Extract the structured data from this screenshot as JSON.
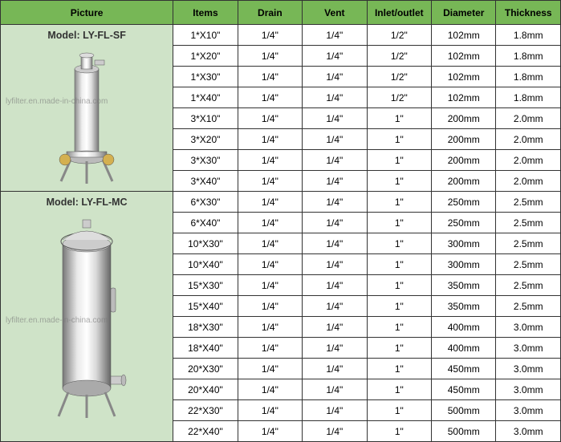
{
  "headers": {
    "picture": "Picture",
    "items": "Items",
    "drain": "Drain",
    "vent": "Vent",
    "inlet": "Inlet/outlet",
    "diameter": "Diameter",
    "thickness": "Thickness"
  },
  "model1": {
    "label": "Model: LY-FL-SF",
    "watermark": "lyfilter.en.made-in-china.com",
    "rows": [
      {
        "items": "1*X10\"",
        "drain": "1/4\"",
        "vent": "1/4\"",
        "inlet": "1/2\"",
        "diameter": "102mm",
        "thickness": "1.8mm"
      },
      {
        "items": "1*X20\"",
        "drain": "1/4\"",
        "vent": "1/4\"",
        "inlet": "1/2\"",
        "diameter": "102mm",
        "thickness": "1.8mm"
      },
      {
        "items": "1*X30\"",
        "drain": "1/4\"",
        "vent": "1/4\"",
        "inlet": "1/2\"",
        "diameter": "102mm",
        "thickness": "1.8mm"
      },
      {
        "items": "1*X40\"",
        "drain": "1/4\"",
        "vent": "1/4\"",
        "inlet": "1/2\"",
        "diameter": "102mm",
        "thickness": "1.8mm"
      },
      {
        "items": "3*X10\"",
        "drain": "1/4\"",
        "vent": "1/4\"",
        "inlet": "1\"",
        "diameter": "200mm",
        "thickness": "2.0mm"
      },
      {
        "items": "3*X20\"",
        "drain": "1/4\"",
        "vent": "1/4\"",
        "inlet": "1\"",
        "diameter": "200mm",
        "thickness": "2.0mm"
      },
      {
        "items": "3*X30\"",
        "drain": "1/4\"",
        "vent": "1/4\"",
        "inlet": "1\"",
        "diameter": "200mm",
        "thickness": "2.0mm"
      },
      {
        "items": "3*X40\"",
        "drain": "1/4\"",
        "vent": "1/4\"",
        "inlet": "1\"",
        "diameter": "200mm",
        "thickness": "2.0mm"
      }
    ]
  },
  "model2": {
    "label": "Model: LY-FL-MC",
    "watermark": "lyfilter.en.made-in-china.com",
    "rows": [
      {
        "items": "6*X30\"",
        "drain": "1/4\"",
        "vent": "1/4\"",
        "inlet": "1\"",
        "diameter": "250mm",
        "thickness": "2.5mm"
      },
      {
        "items": "6*X40\"",
        "drain": "1/4\"",
        "vent": "1/4\"",
        "inlet": "1\"",
        "diameter": "250mm",
        "thickness": "2.5mm"
      },
      {
        "items": "10*X30\"",
        "drain": "1/4\"",
        "vent": "1/4\"",
        "inlet": "1\"",
        "diameter": "300mm",
        "thickness": "2.5mm"
      },
      {
        "items": "10*X40\"",
        "drain": "1/4\"",
        "vent": "1/4\"",
        "inlet": "1\"",
        "diameter": "300mm",
        "thickness": "2.5mm"
      },
      {
        "items": "15*X30\"",
        "drain": "1/4\"",
        "vent": "1/4\"",
        "inlet": "1\"",
        "diameter": "350mm",
        "thickness": "2.5mm"
      },
      {
        "items": "15*X40\"",
        "drain": "1/4\"",
        "vent": "1/4\"",
        "inlet": "1\"",
        "diameter": "350mm",
        "thickness": "2.5mm"
      },
      {
        "items": "18*X30\"",
        "drain": "1/4\"",
        "vent": "1/4\"",
        "inlet": "1\"",
        "diameter": "400mm",
        "thickness": "3.0mm"
      },
      {
        "items": "18*X40\"",
        "drain": "1/4\"",
        "vent": "1/4\"",
        "inlet": "1\"",
        "diameter": "400mm",
        "thickness": "3.0mm"
      },
      {
        "items": "20*X30\"",
        "drain": "1/4\"",
        "vent": "1/4\"",
        "inlet": "1\"",
        "diameter": "450mm",
        "thickness": "3.0mm"
      },
      {
        "items": "20*X40\"",
        "drain": "1/4\"",
        "vent": "1/4\"",
        "inlet": "1\"",
        "diameter": "450mm",
        "thickness": "3.0mm"
      },
      {
        "items": "22*X30\"",
        "drain": "1/4\"",
        "vent": "1/4\"",
        "inlet": "1\"",
        "diameter": "500mm",
        "thickness": "3.0mm"
      },
      {
        "items": "22*X40\"",
        "drain": "1/4\"",
        "vent": "1/4\"",
        "inlet": "1\"",
        "diameter": "500mm",
        "thickness": "3.0mm"
      }
    ]
  },
  "colors": {
    "header_bg": "#77b756",
    "model_bg": "#cfe3c8",
    "border": "#333333"
  }
}
